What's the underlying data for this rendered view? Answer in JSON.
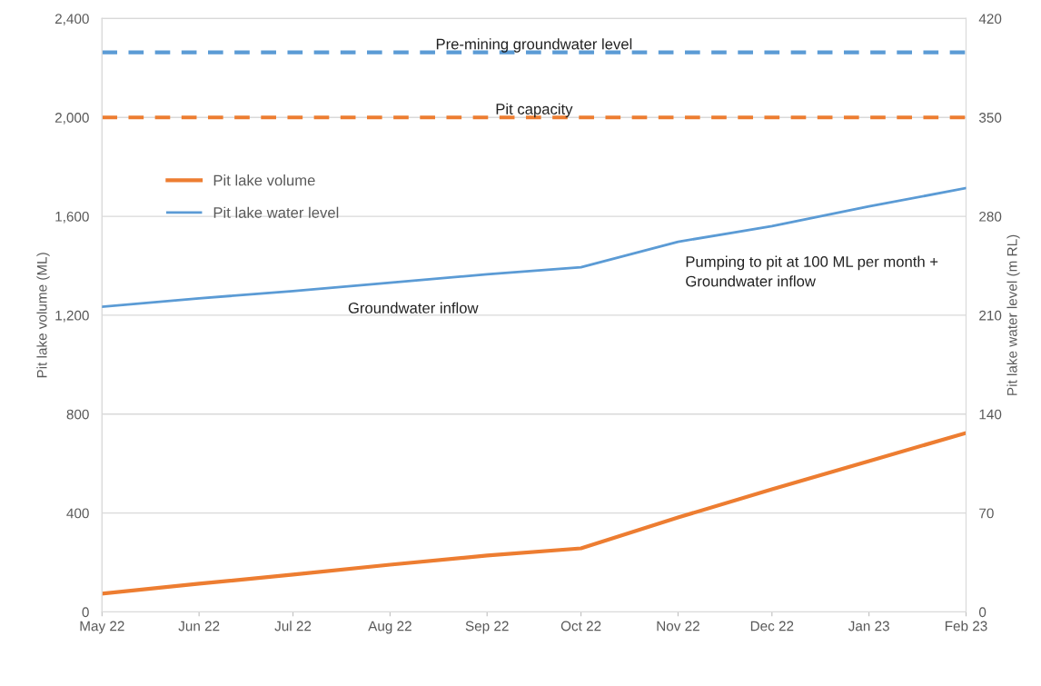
{
  "chart_data": {
    "type": "line",
    "ylabel": "Pit lake volume (ML)",
    "y2label": "Pit lake water level (m RL)",
    "x": [
      "2022-05-01",
      "2022-06-01",
      "2022-07-01",
      "2022-08-01",
      "2022-09-01",
      "2022-10-01",
      "2022-11-01",
      "2022-12-01",
      "2023-01-01",
      "2023-02-01"
    ],
    "series": [
      {
        "name": "Pit lake volume",
        "color": "#ed7d31",
        "values": [
          74,
          114,
          151,
          191,
          228,
          257,
          382,
          496,
          610,
          724
        ]
      },
      {
        "name": "Pit lake water level",
        "color": "#5b9bd5",
        "axis": "y2",
        "values": [
          216,
          222,
          227,
          233,
          239,
          244,
          262,
          273,
          287,
          300
        ]
      }
    ],
    "xlim": [
      "2022-05-01",
      "2023-02-01"
    ],
    "xticks": [
      {
        "value": "2022-05-01",
        "label": "May 22"
      },
      {
        "value": "2022-06-01",
        "label": "Jun 22"
      },
      {
        "value": "2022-07-01",
        "label": "Jul 22"
      },
      {
        "value": "2022-08-01",
        "label": "Aug 22"
      },
      {
        "value": "2022-09-01",
        "label": "Sep 22"
      },
      {
        "value": "2022-10-01",
        "label": "Oct 22"
      },
      {
        "value": "2022-11-01",
        "label": "Nov 22"
      },
      {
        "value": "2022-12-01",
        "label": "Dec 22"
      },
      {
        "value": "2023-01-01",
        "label": "Jan 23"
      },
      {
        "value": "2023-02-01",
        "label": "Feb 23"
      }
    ],
    "ylim": [
      0,
      2400
    ],
    "yticks": [
      {
        "value": 0,
        "label": "0"
      },
      {
        "value": 400,
        "label": "400"
      },
      {
        "value": 800,
        "label": "800"
      },
      {
        "value": 1200,
        "label": "1,200"
      },
      {
        "value": 1600,
        "label": "1,600"
      },
      {
        "value": 2000,
        "label": "2,000"
      },
      {
        "value": 2400,
        "label": "2,400"
      }
    ],
    "y2lim": [
      0,
      420
    ],
    "y2ticks": [
      0,
      70,
      140,
      210,
      280,
      350,
      420
    ],
    "ref_lines": [
      {
        "axis": "y2",
        "value": 396,
        "label": "Pre-mining groundwater level",
        "color": "#5b9bd5",
        "line_style": "dashed"
      },
      {
        "axis": "y",
        "value": 2000,
        "label": "Pit capacity",
        "color": "#ed7d31",
        "line_style": "dashed"
      }
    ],
    "annotations": [
      "Groundwater inflow",
      "Pumping to pit at 100 ML per month +\nGroundwater inflow"
    ],
    "grid": "y",
    "legend": "top left",
    "marker": "none",
    "line_style": "solid"
  }
}
